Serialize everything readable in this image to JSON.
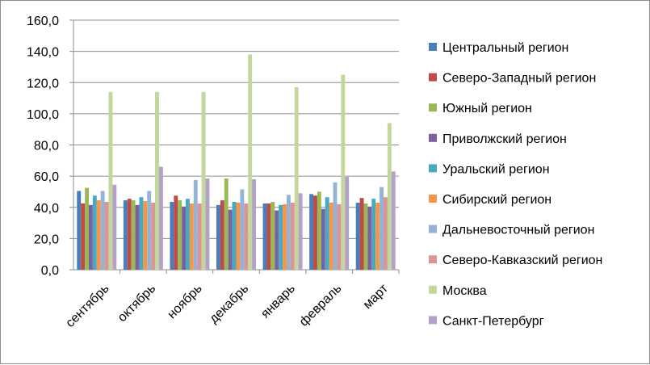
{
  "chart_data": {
    "type": "bar",
    "categories": [
      "сентябрь",
      "октябрь",
      "ноябрь",
      "декабрь",
      "январь",
      "февраль",
      "март"
    ],
    "ylim": [
      0,
      160
    ],
    "yticks": [
      "0,0",
      "20,0",
      "40,0",
      "60,0",
      "80,0",
      "100,0",
      "120,0",
      "140,0",
      "160,0"
    ],
    "grid": "horizontal",
    "legend_position": "right",
    "series": [
      {
        "name": "Центральный регион",
        "color": "#4a7ebb",
        "values": [
          50.5,
          44.5,
          43.5,
          41.5,
          42.5,
          48.5,
          43.0
        ]
      },
      {
        "name": "Северо-Западный регион",
        "color": "#be4b48",
        "values": [
          42.5,
          45.5,
          47.5,
          44.5,
          42.5,
          47.5,
          46.0
        ]
      },
      {
        "name": "Южный регион",
        "color": "#98b954",
        "values": [
          52.5,
          44.5,
          44.5,
          58.5,
          43.5,
          50.0,
          42.5
        ]
      },
      {
        "name": "Приволжский регион",
        "color": "#7d60a0",
        "values": [
          41.5,
          41.5,
          40.5,
          38.5,
          38.0,
          39.0,
          40.5
        ]
      },
      {
        "name": "Уральский регион",
        "color": "#46aac5",
        "values": [
          47.5,
          46.5,
          45.5,
          43.5,
          41.5,
          46.5,
          45.5
        ]
      },
      {
        "name": "Сибирский регион",
        "color": "#f79646",
        "values": [
          44.5,
          44.0,
          42.5,
          43.0,
          42.0,
          43.0,
          43.0
        ]
      },
      {
        "name": "Дальневосточный регион",
        "color": "#95b3d7",
        "values": [
          50.5,
          50.5,
          57.5,
          51.5,
          48.0,
          56.0,
          53.0
        ]
      },
      {
        "name": "Северо-Кавказский регион",
        "color": "#d99694",
        "values": [
          43.5,
          43.0,
          42.5,
          42.5,
          43.0,
          42.0,
          46.5
        ]
      },
      {
        "name": "Москва",
        "color": "#c3d69b",
        "values": [
          114.0,
          114.0,
          114.0,
          138.0,
          117.0,
          125.0,
          94.0
        ]
      },
      {
        "name": "Санкт-Петербург",
        "color": "#b3a2c7",
        "values": [
          54.5,
          66.0,
          58.5,
          58.0,
          49.0,
          59.5,
          63.0
        ]
      }
    ]
  }
}
